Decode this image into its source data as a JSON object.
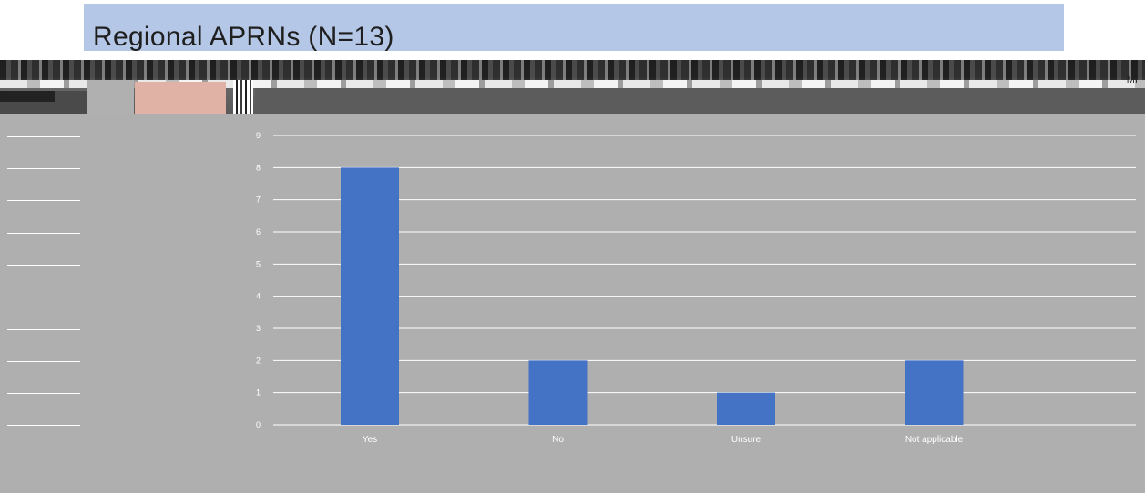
{
  "title": "Regional APRNs (N=13)",
  "toolbar": {
    "right_label": "MI"
  },
  "colors": {
    "title_banner": "#b4c7e7",
    "bar": "#4472c4",
    "workspace": "#afafaf",
    "gridline": "#ffffff",
    "toolbar_pink": "#e0b1a5"
  },
  "chart_data": {
    "type": "bar",
    "categories": [
      "Yes",
      "No",
      "Unsure",
      "Not applicable"
    ],
    "values": [
      8,
      2,
      1,
      2
    ],
    "title": "",
    "xlabel": "",
    "ylabel": "",
    "ylim": [
      0,
      9
    ],
    "yticks": [
      "0",
      "1",
      "2",
      "3",
      "4",
      "5",
      "6",
      "7",
      "8",
      "9"
    ],
    "grid": true,
    "legend": "none"
  }
}
